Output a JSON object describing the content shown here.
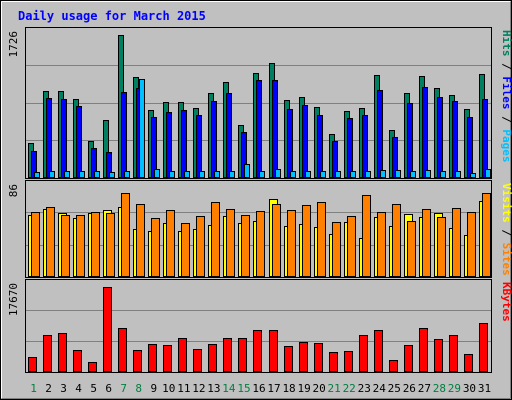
{
  "chart_data": {
    "type": "bar",
    "title": "Daily usage for March 2015",
    "categories": [
      "1",
      "2",
      "3",
      "4",
      "5",
      "6",
      "7",
      "8",
      "9",
      "10",
      "11",
      "12",
      "13",
      "14",
      "15",
      "16",
      "17",
      "18",
      "19",
      "20",
      "21",
      "22",
      "23",
      "24",
      "25",
      "26",
      "27",
      "28",
      "29",
      "30",
      "31"
    ],
    "weekend_days": [
      "1",
      "7",
      "8",
      "14",
      "15",
      "21",
      "22",
      "28",
      "29"
    ],
    "panels": [
      {
        "id": "hits-files-pages",
        "max_label": "1726",
        "ylim": [
          0,
          1726
        ],
        "labels": [
          {
            "text": "Pages",
            "color": "#00c0ff"
          },
          {
            "text": "Files",
            "color": "#0000ff"
          },
          {
            "text": "Hits",
            "color": "#008060"
          }
        ],
        "series": [
          {
            "name": "Hits",
            "color": "#008060",
            "values": [
              420,
              1045,
              1045,
              955,
              450,
              700,
              1726,
              1220,
              820,
              915,
              915,
              840,
              1025,
              1160,
              645,
              1270,
              1385,
              940,
              980,
              860,
              535,
              805,
              850,
              1245,
              575,
              1025,
              1235,
              1085,
              1005,
              830,
              1255
            ]
          },
          {
            "name": "Files",
            "color": "#0000ff",
            "values": [
              330,
              960,
              955,
              865,
              360,
              310,
              1040,
              1085,
              735,
              795,
              820,
              760,
              935,
              1030,
              550,
              1180,
              1185,
              835,
              880,
              755,
              445,
              725,
              760,
              1065,
              490,
              910,
              1100,
              980,
              935,
              735,
              955
            ]
          },
          {
            "name": "Pages",
            "color": "#00c0ff",
            "values": [
              70,
              90,
              90,
              90,
              80,
              70,
              80,
              1200,
              110,
              90,
              90,
              90,
              90,
              90,
              170,
              90,
              110,
              80,
              80,
              80,
              80,
              80,
              80,
              100,
              100,
              80,
              100,
              90,
              80,
              60,
              110
            ]
          }
        ]
      },
      {
        "id": "visits-sites",
        "max_label": "86",
        "ylim": [
          0,
          86
        ],
        "labels": [
          {
            "text": "Sites",
            "color": "#ff8000"
          },
          {
            "text": "Visits",
            "color": "#ffff00"
          }
        ],
        "series": [
          {
            "name": "Visits",
            "color": "#ffff00",
            "values": [
              60,
              66,
              62,
              57,
              62,
              65,
              68,
              46,
              44,
              52,
              44,
              46,
              50,
              59,
              52,
              54,
              75,
              49,
              51,
              48,
              42,
              53,
              38,
              58,
              49,
              61,
              58,
              62,
              47,
              41,
              73
            ]
          },
          {
            "name": "Sites",
            "color": "#ff8000",
            "values": [
              63,
              68,
              60,
              60,
              63,
              62,
              81,
              71,
              57,
              65,
              52,
              59,
              72,
              66,
              60,
              64,
              71,
              65,
              70,
              72,
              53,
              59,
              79,
              63,
              71,
              54,
              66,
              58,
              67,
              63,
              81
            ]
          }
        ]
      },
      {
        "id": "kbytes",
        "max_label": "17670",
        "ylim": [
          0,
          17670
        ],
        "labels": [
          {
            "text": "KBytes",
            "color": "#ff0000"
          }
        ],
        "series": [
          {
            "name": "KBytes",
            "color": "#ff0000",
            "values": [
              3060,
              7640,
              8040,
              4520,
              2160,
              17670,
              9220,
              4520,
              5890,
              5590,
              7170,
              4720,
              5790,
              7170,
              7010,
              8740,
              8740,
              5460,
              6310,
              6010,
              4220,
              4380,
              7590,
              8640,
              2550,
              5590,
              9140,
              6800,
              7600,
              3780,
              10110
            ]
          }
        ]
      }
    ]
  }
}
